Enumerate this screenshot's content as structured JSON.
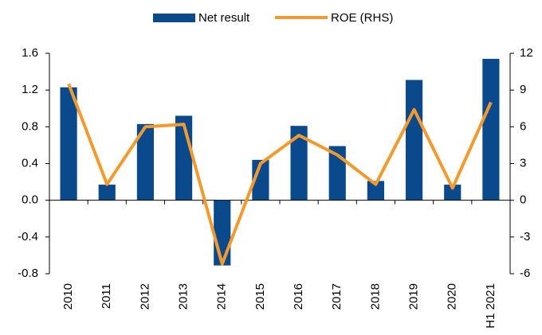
{
  "chart_data": {
    "type": "bar-line",
    "categories": [
      "2010",
      "2011",
      "2012",
      "2013",
      "2014",
      "2015",
      "2016",
      "2017",
      "2018",
      "2019",
      "2020",
      "H1 2021"
    ],
    "series": [
      {
        "name": "Net result",
        "type": "bar",
        "color": "#0a4a8c",
        "values": [
          1.23,
          0.17,
          0.83,
          0.92,
          -0.71,
          0.44,
          0.81,
          0.59,
          0.21,
          1.31,
          0.17,
          1.54
        ]
      },
      {
        "name": "ROE (RHS)",
        "type": "line",
        "axis": "y2",
        "color": "#f39a2e",
        "values": [
          9.5,
          1.3,
          6.0,
          6.2,
          -5.2,
          3.0,
          5.3,
          3.7,
          1.3,
          7.4,
          1.0,
          8.0
        ]
      }
    ],
    "ylim": [
      -0.8,
      1.6
    ],
    "yticks": [
      -0.8,
      -0.4,
      {
        "value": 0,
        "label": "0.0"
      },
      0.4,
      0.8,
      1.2,
      1.6
    ],
    "y2lim": [
      -6,
      12
    ],
    "y2ticks": [
      -6,
      -3,
      0,
      3,
      6,
      9,
      12
    ],
    "legend": "top"
  }
}
